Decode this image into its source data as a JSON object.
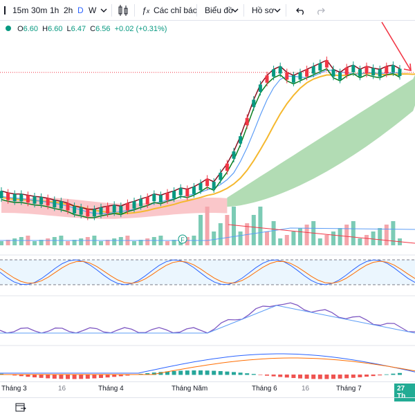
{
  "toolbar": {
    "intervals": [
      "15m",
      "30m",
      "1h",
      "2h",
      "D",
      "W"
    ],
    "active_interval": "D",
    "indicators_label": "Các chỉ báo",
    "chart_label": "Biểu đồ",
    "profile_label": "Hồ sơ"
  },
  "legend": {
    "open_label": "O",
    "open": "6.60",
    "high_label": "H",
    "high": "6.60",
    "low_label": "L",
    "low": "6.47",
    "close_label": "C",
    "close": "6.56",
    "change": "+0.02 (+0.31%)"
  },
  "time_axis": {
    "labels": [
      "Tháng 3",
      "16",
      "Tháng 4",
      "Tháng Năm",
      "Tháng 6",
      "16",
      "Tháng 7"
    ],
    "current": "27 Th"
  },
  "events": {
    "marker": "F"
  },
  "colors": {
    "up": "#089981",
    "down": "#f23645",
    "tenkan": "#880e1e",
    "kijun": "#0a7d1e",
    "ma": "#f5b82e",
    "cloud": "#a5d6a7",
    "rsi": "#7e57c2",
    "accent": "#2962ff"
  },
  "chart_data": {
    "type": "candlestick",
    "price": {
      "last": 6.56,
      "open": 6.6,
      "high": 6.6,
      "low": 6.47,
      "close": 6.56,
      "trend": [
        4.55,
        4.52,
        4.5,
        4.5,
        4.48,
        4.46,
        4.45,
        4.43,
        4.4,
        4.38,
        4.35,
        4.3,
        4.28,
        4.25,
        4.25,
        4.28,
        4.3,
        4.32,
        4.3,
        4.35,
        4.38,
        4.42,
        4.45,
        4.5,
        4.48,
        4.52,
        4.55,
        4.6,
        4.58,
        4.62,
        4.68,
        4.75,
        4.7,
        4.85,
        5.0,
        5.2,
        5.45,
        5.75,
        6.05,
        6.3,
        6.45,
        6.55,
        6.6,
        6.5,
        6.45,
        6.5,
        6.55,
        6.6,
        6.65,
        6.7,
        6.55,
        6.5,
        6.58,
        6.62,
        6.55,
        6.6,
        6.57,
        6.55,
        6.6,
        6.62,
        6.56
      ]
    },
    "indicators": [
      "Ichimoku",
      "MA",
      "Volume",
      "Stochastic",
      "RSI",
      "MACD"
    ]
  }
}
